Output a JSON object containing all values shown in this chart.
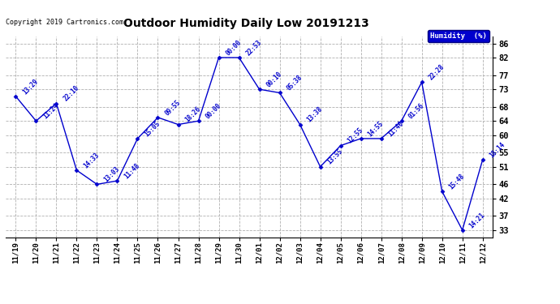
{
  "title": "Outdoor Humidity Daily Low 20191213",
  "copyright": "Copyright 2019 Cartronics.com",
  "legend_label": "Humidity  (%)",
  "x_labels": [
    "11/19",
    "11/20",
    "11/21",
    "11/22",
    "11/23",
    "11/24",
    "11/25",
    "11/26",
    "11/27",
    "11/28",
    "11/29",
    "11/30",
    "12/01",
    "12/02",
    "12/03",
    "12/04",
    "12/05",
    "12/06",
    "12/07",
    "12/08",
    "12/09",
    "12/10",
    "12/11",
    "12/12"
  ],
  "y_values": [
    71,
    64,
    69,
    50,
    46,
    47,
    59,
    65,
    63,
    64,
    82,
    82,
    73,
    72,
    63,
    51,
    57,
    59,
    59,
    64,
    75,
    44,
    33,
    53
  ],
  "point_labels": [
    "13:29",
    "11:24",
    "22:10",
    "14:33",
    "13:03",
    "11:48",
    "15:05",
    "09:55",
    "18:26",
    "00:00",
    "00:00",
    "22:53",
    "00:10",
    "05:38",
    "13:38",
    "13:55",
    "12:55",
    "14:55",
    "11:40",
    "01:56",
    "22:28",
    "15:48",
    "14:21",
    "18:14"
  ],
  "y_ticks": [
    33,
    37,
    42,
    46,
    51,
    55,
    60,
    64,
    68,
    73,
    77,
    82,
    86
  ],
  "ylim": [
    31,
    88
  ],
  "xlim": [
    -0.5,
    23.5
  ],
  "line_color": "#0000cd",
  "marker_color": "#0000cd",
  "text_color": "#0000cd",
  "bg_color": "#ffffff",
  "grid_color": "#b0b0b0",
  "title_color": "#000000",
  "legend_bg": "#0000cd",
  "legend_text": "#ffffff",
  "figsize": [
    6.9,
    3.75
  ],
  "dpi": 100
}
